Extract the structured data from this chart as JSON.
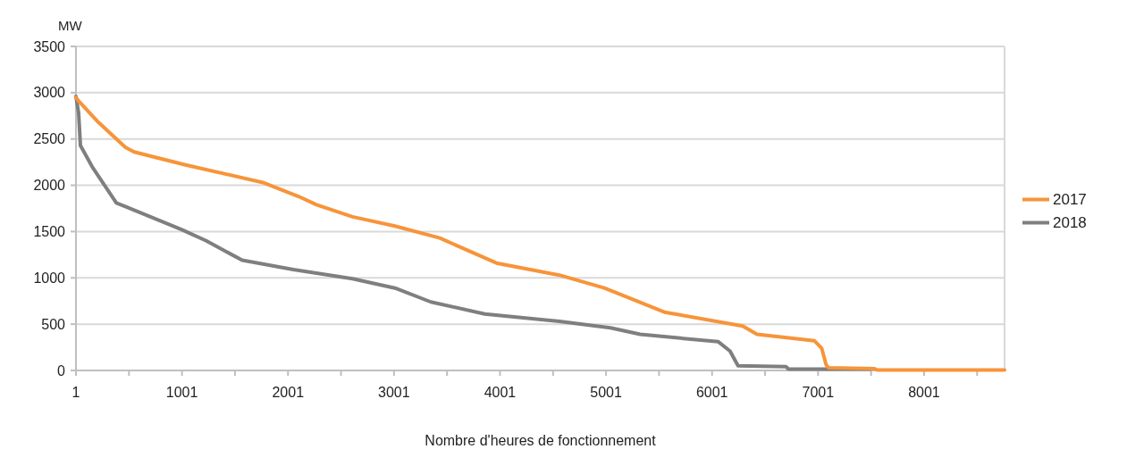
{
  "chart_data": {
    "type": "line",
    "xlabel": "Nombre d'heures de fonctionnement",
    "ylabel": "MW",
    "xlim": [
      1,
      8760
    ],
    "xticks": [
      1,
      {
        "value": 501,
        "label": null
      },
      1001,
      {
        "value": 1501,
        "label": null
      },
      2001,
      {
        "value": 2501,
        "label": null
      },
      3001,
      {
        "value": 3501,
        "label": null
      },
      4001,
      {
        "value": 4501,
        "label": null
      },
      5001,
      {
        "value": 5501,
        "label": null
      },
      6001,
      {
        "value": 6501,
        "label": null
      },
      7001,
      {
        "value": 7501,
        "label": null
      },
      8001,
      {
        "value": 8501,
        "label": null
      }
    ],
    "ylim": [
      0,
      3500
    ],
    "yticks": [
      0,
      500,
      1000,
      1500,
      2000,
      2500,
      3000,
      3500
    ],
    "grid": "y",
    "legend": "right",
    "line_style": "solid",
    "marker": "none",
    "series": [
      {
        "name": "2017",
        "color": "#f7943a",
        "x": [
          1,
          26,
          213,
          467,
          550,
          1035,
          1764,
          2100,
          2270,
          2610,
          3010,
          3433,
          3967,
          4560,
          4985,
          5552,
          6290,
          6425,
          6967,
          7035,
          7077,
          7100,
          7530,
          7560,
          8760
        ],
        "values": [
          2950,
          2910,
          2680,
          2410,
          2360,
          2220,
          2030,
          1880,
          1790,
          1660,
          1560,
          1430,
          1160,
          1030,
          890,
          630,
          480,
          390,
          320,
          240,
          60,
          30,
          20,
          5,
          5
        ]
      },
      {
        "name": "2018",
        "color": "#7f7f7f",
        "x": [
          1,
          26,
          43,
          154,
          382,
          467,
          1001,
          1230,
          1569,
          2052,
          2610,
          3010,
          3348,
          3857,
          4560,
          5043,
          5323,
          6060,
          6170,
          6246,
          6700,
          6720,
          7500
        ],
        "values": [
          2960,
          2780,
          2430,
          2200,
          1810,
          1770,
          1520,
          1400,
          1190,
          1090,
          990,
          890,
          740,
          610,
          530,
          460,
          390,
          310,
          210,
          50,
          40,
          15,
          15
        ]
      }
    ]
  }
}
